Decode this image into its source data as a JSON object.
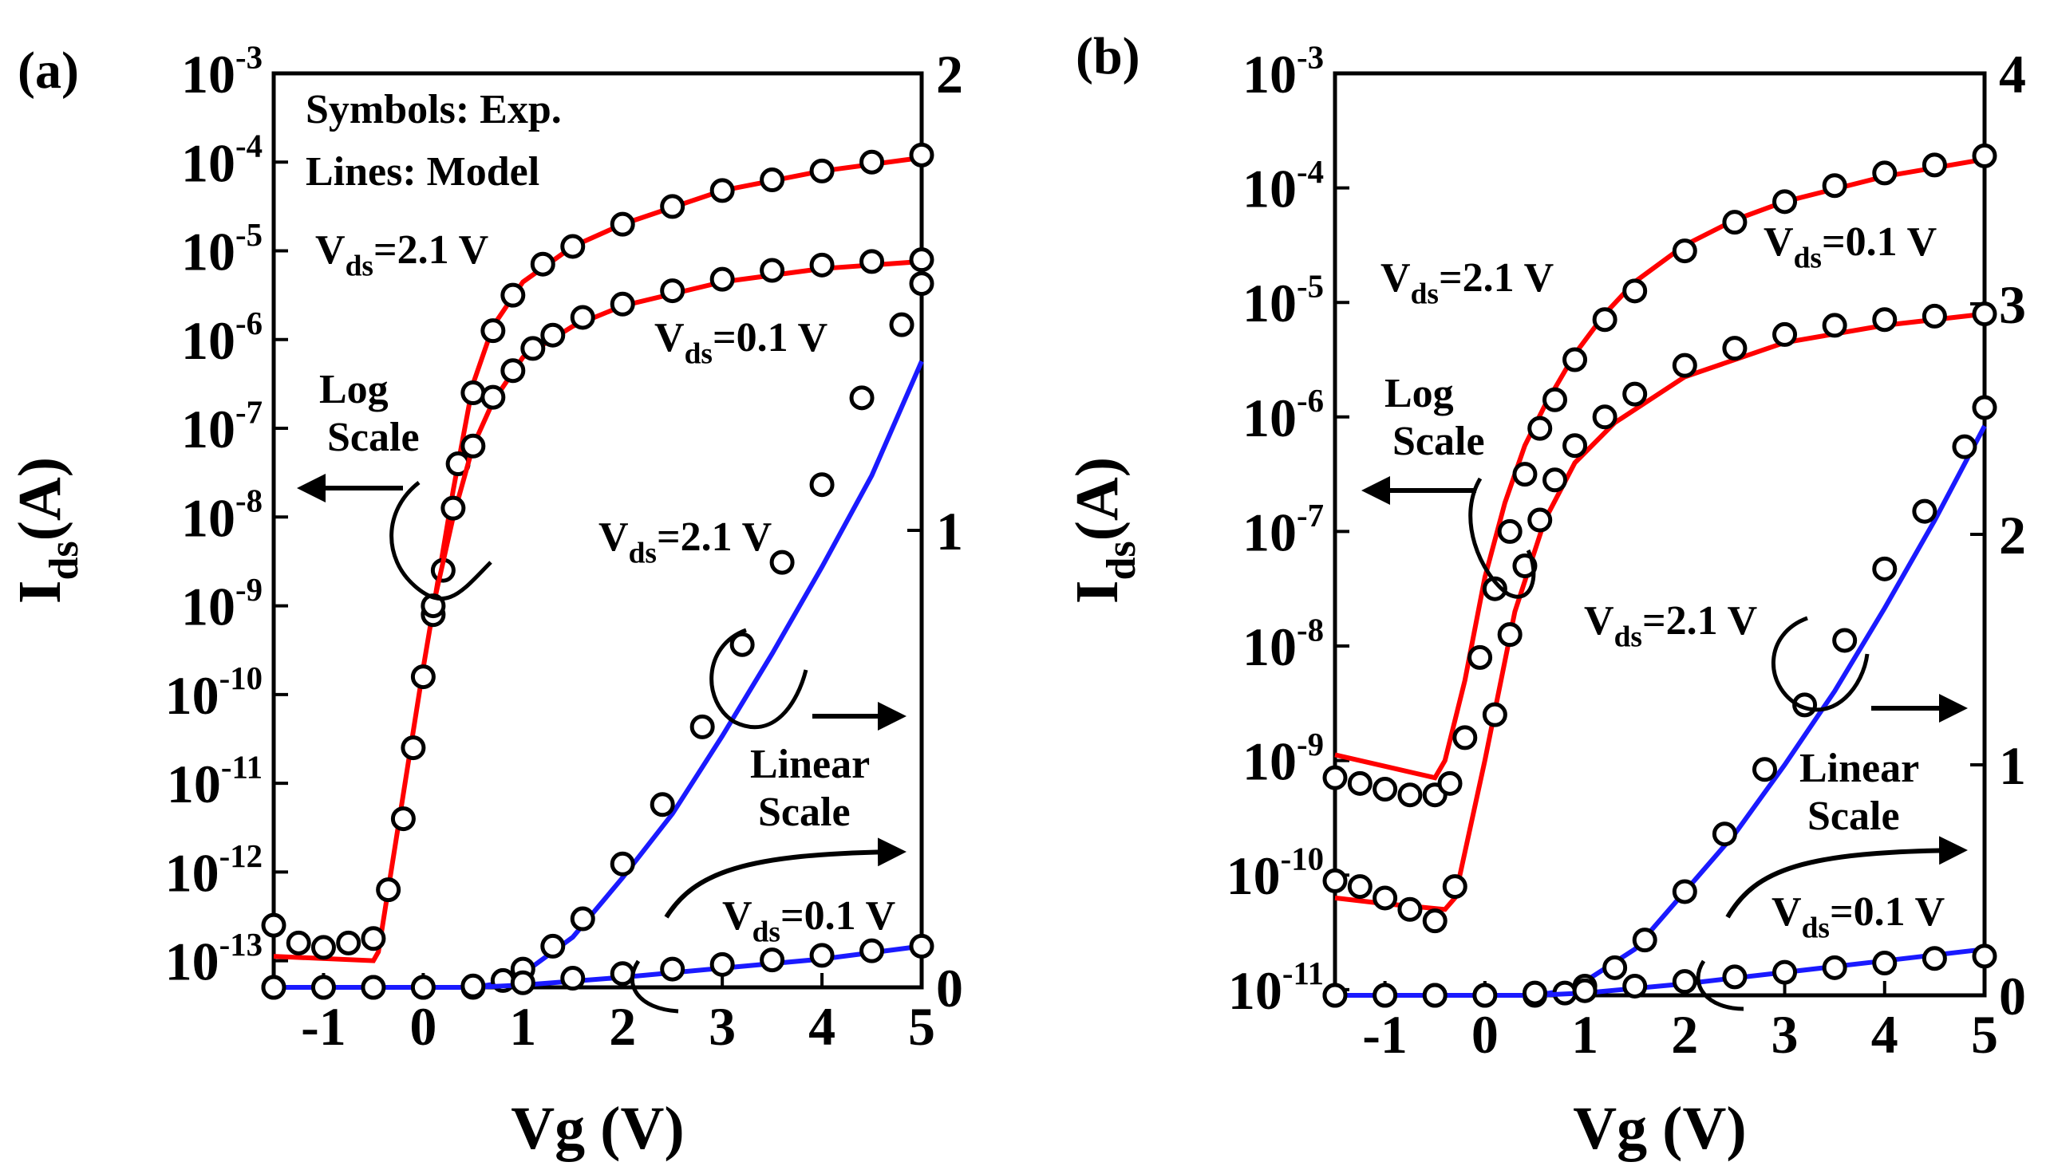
{
  "figure": {
    "panel_labels": [
      "(a)",
      "(b)"
    ]
  },
  "chart_data": [
    {
      "type": "line",
      "panel": "(a)",
      "xlabel": "Vg (V)",
      "ylabel_left": {
        "main": "I",
        "sub": "ds",
        "unit": "(A)"
      },
      "xlim": [
        -1.5,
        5
      ],
      "xticks": [
        -1,
        0,
        1,
        2,
        3,
        4,
        5
      ],
      "ylim_log_exp": [
        -13.3,
        -3
      ],
      "yticks_log_exp": [
        -3,
        -4,
        -5,
        -6,
        -7,
        -8,
        -9,
        -10,
        -11,
        -12,
        -13
      ],
      "ylim_right": [
        0,
        2
      ],
      "yticks_right": [
        0,
        1,
        2
      ],
      "legend": [
        "Symbols: Exp.",
        "Lines: Model"
      ],
      "colors": {
        "log_model": "#ff0000",
        "linear_model": "#1a1aff",
        "exp": "#000000"
      },
      "series": [
        {
          "name": "Vds=2.1 V (log)",
          "scale": "log",
          "x": [
            -1.5,
            -1.25,
            -1.0,
            -0.75,
            -0.5,
            -0.35,
            -0.2,
            -0.1,
            0,
            0.1,
            0.2,
            0.35,
            0.5,
            0.7,
            0.9,
            1.2,
            1.5,
            2,
            2.5,
            3,
            3.5,
            4,
            4.5,
            5
          ],
          "exp": [
            -12.6,
            -12.8,
            -12.85,
            -12.8,
            -12.75,
            -12.2,
            -11.4,
            -10.6,
            -9.8,
            -9.1,
            -8.6,
            -7.4,
            -6.6,
            -5.9,
            -5.5,
            -5.15,
            -4.95,
            -4.7,
            -4.5,
            -4.32,
            -4.2,
            -4.1,
            -4.0,
            -3.92
          ],
          "model_x": [
            -1.5,
            -0.5,
            -0.45,
            0,
            0.3,
            0.5,
            0.7,
            1.0,
            1.5,
            2,
            3,
            4,
            5
          ],
          "model": [
            -12.95,
            -13.0,
            -12.9,
            -9.7,
            -7.7,
            -6.5,
            -5.85,
            -5.35,
            -4.95,
            -4.7,
            -4.32,
            -4.1,
            -3.95
          ]
        },
        {
          "name": "Vds=0.1 V (log)",
          "scale": "log",
          "x": [
            0.1,
            0.3,
            0.5,
            0.7,
            0.9,
            1.1,
            1.3,
            1.6,
            2,
            2.5,
            3,
            3.5,
            4,
            4.5,
            5
          ],
          "exp": [
            -9.0,
            -7.9,
            -7.2,
            -6.65,
            -6.35,
            -6.1,
            -5.95,
            -5.75,
            -5.6,
            -5.45,
            -5.32,
            -5.22,
            -5.16,
            -5.12,
            -5.1
          ],
          "model_x": [
            0.1,
            0.3,
            0.5,
            0.7,
            1.0,
            1.5,
            2,
            3,
            4,
            5
          ],
          "model": [
            -9.0,
            -8.0,
            -7.2,
            -6.7,
            -6.2,
            -5.85,
            -5.62,
            -5.35,
            -5.2,
            -5.12
          ]
        },
        {
          "name": "Vds=2.1 V (linear)",
          "scale": "linear",
          "x": [
            -1.5,
            -1,
            -0.5,
            0,
            0.5,
            0.8,
            1.0,
            1.3,
            1.6,
            2,
            2.4,
            2.8,
            3.2,
            3.6,
            4,
            4.4,
            4.8,
            5
          ],
          "exp": [
            0,
            0,
            0,
            0,
            0,
            0.015,
            0.04,
            0.09,
            0.15,
            0.27,
            0.4,
            0.57,
            0.75,
            0.93,
            1.1,
            1.29,
            1.45,
            1.54
          ],
          "model_x": [
            -1.5,
            0.5,
            0.8,
            1.0,
            1.5,
            2,
            2.5,
            3,
            3.5,
            4,
            4.5,
            5
          ],
          "model": [
            0,
            0,
            0.01,
            0.03,
            0.11,
            0.24,
            0.38,
            0.55,
            0.73,
            0.92,
            1.12,
            1.37
          ]
        },
        {
          "name": "Vds=0.1 V (linear)",
          "scale": "linear",
          "x": [
            -1.5,
            -1,
            -0.5,
            0,
            0.5,
            1,
            1.5,
            2,
            2.5,
            3,
            3.5,
            4,
            4.5,
            5
          ],
          "exp": [
            0,
            0,
            0,
            0,
            0.003,
            0.01,
            0.02,
            0.03,
            0.04,
            0.05,
            0.06,
            0.07,
            0.08,
            0.09
          ],
          "model_x": [
            -1.5,
            0.5,
            1,
            2,
            3,
            4,
            5
          ],
          "model": [
            0,
            0,
            0.005,
            0.022,
            0.042,
            0.062,
            0.09
          ]
        }
      ],
      "annotations": {
        "vds_high_log": {
          "main": "V",
          "sub": "ds",
          "tail": "=2.1 V"
        },
        "vds_low_log": {
          "main": "V",
          "sub": "ds",
          "tail": "=0.1 V"
        },
        "vds_high_lin": {
          "main": "V",
          "sub": "ds",
          "tail": "=2.1 V"
        },
        "vds_low_lin": {
          "main": "V",
          "sub": "ds",
          "tail": "=0.1 V"
        },
        "log_scale": [
          "Log",
          "Scale"
        ],
        "linear_scale": [
          "Linear",
          "Scale"
        ]
      }
    },
    {
      "type": "line",
      "panel": "(b)",
      "xlabel": "Vg (V)",
      "ylabel_left": {
        "main": "I",
        "sub": "ds",
        "unit": "(A)"
      },
      "xlim": [
        -1.5,
        5
      ],
      "xticks": [
        -1,
        0,
        1,
        2,
        3,
        4,
        5
      ],
      "ylim_log_exp": [
        -11.05,
        -3
      ],
      "yticks_log_exp": [
        -3,
        -4,
        -5,
        -6,
        -7,
        -8,
        -9,
        -10,
        -11
      ],
      "ylim_right": [
        0,
        4
      ],
      "yticks_right": [
        0,
        1,
        2,
        3,
        4
      ],
      "colors": {
        "log_model": "#ff0000",
        "linear_model": "#1a1aff",
        "exp": "#000000"
      },
      "series": [
        {
          "name": "Vds=2.1 V (log)",
          "scale": "log",
          "x": [
            -1.5,
            -1.25,
            -1.0,
            -0.75,
            -0.5,
            -0.35,
            -0.2,
            -0.05,
            0.1,
            0.25,
            0.4,
            0.55,
            0.7,
            0.9,
            1.2,
            1.5,
            2,
            2.5,
            3,
            3.5,
            4,
            4.5,
            5
          ],
          "exp": [
            -9.15,
            -9.2,
            -9.25,
            -9.3,
            -9.3,
            -9.2,
            -8.8,
            -8.1,
            -7.5,
            -7.0,
            -6.5,
            -6.1,
            -5.85,
            -5.5,
            -5.15,
            -4.9,
            -4.55,
            -4.3,
            -4.12,
            -3.98,
            -3.87,
            -3.8,
            -3.72
          ],
          "model_x": [
            -1.5,
            -1.0,
            -0.5,
            -0.4,
            -0.2,
            0,
            0.2,
            0.4,
            0.6,
            0.9,
            1.2,
            1.5,
            2,
            2.5,
            3,
            4,
            5
          ],
          "model": [
            -8.95,
            -9.05,
            -9.15,
            -9.0,
            -8.3,
            -7.4,
            -6.75,
            -6.25,
            -5.9,
            -5.45,
            -5.1,
            -4.82,
            -4.5,
            -4.28,
            -4.12,
            -3.9,
            -3.75
          ]
        },
        {
          "name": "Vds=0.1 V (log)",
          "scale": "log",
          "x": [
            -1.5,
            -1.25,
            -1.0,
            -0.75,
            -0.5,
            -0.3,
            0.1,
            0.25,
            0.4,
            0.55,
            0.7,
            0.9,
            1.2,
            1.5,
            2,
            2.5,
            3,
            3.5,
            4,
            4.5,
            5
          ],
          "exp": [
            -10.05,
            -10.1,
            -10.2,
            -10.3,
            -10.4,
            -10.1,
            -8.6,
            -7.9,
            -7.3,
            -6.9,
            -6.55,
            -6.25,
            -6.0,
            -5.8,
            -5.55,
            -5.4,
            -5.28,
            -5.2,
            -5.15,
            -5.12,
            -5.1
          ],
          "model_x": [
            -1.5,
            -1.0,
            -0.4,
            -0.3,
            0,
            0.3,
            0.6,
            0.9,
            1.3,
            2,
            3,
            4,
            5
          ],
          "model": [
            -10.2,
            -10.25,
            -10.3,
            -10.2,
            -9.0,
            -7.7,
            -6.9,
            -6.4,
            -6.05,
            -5.65,
            -5.35,
            -5.2,
            -5.1
          ]
        },
        {
          "name": "Vds=2.1 V (linear)",
          "scale": "linear",
          "x": [
            -1.5,
            -1,
            -0.5,
            0,
            0.5,
            0.8,
            1.0,
            1.3,
            1.6,
            2,
            2.4,
            2.8,
            3.2,
            3.6,
            4,
            4.4,
            4.8,
            5
          ],
          "exp": [
            0,
            0,
            0,
            0,
            0,
            0.01,
            0.04,
            0.12,
            0.24,
            0.45,
            0.7,
            0.98,
            1.26,
            1.54,
            1.85,
            2.1,
            2.38,
            2.55
          ],
          "model_x": [
            -1.5,
            0.5,
            0.8,
            1.0,
            1.5,
            2,
            2.5,
            3,
            3.5,
            4,
            4.5,
            5
          ],
          "model": [
            0,
            0,
            0.02,
            0.06,
            0.2,
            0.45,
            0.7,
            1.0,
            1.32,
            1.68,
            2.06,
            2.47
          ]
        },
        {
          "name": "Vds=0.1 V (linear)",
          "scale": "linear",
          "x": [
            -1.5,
            -1,
            -0.5,
            0,
            0.5,
            1,
            1.5,
            2,
            2.5,
            3,
            3.5,
            4,
            4.5,
            5
          ],
          "exp": [
            0,
            0,
            0,
            0,
            0.01,
            0.02,
            0.04,
            0.06,
            0.08,
            0.1,
            0.12,
            0.14,
            0.16,
            0.17
          ],
          "model_x": [
            -1.5,
            0.5,
            1,
            2,
            3,
            4,
            5
          ],
          "model": [
            0,
            0,
            0.01,
            0.05,
            0.1,
            0.15,
            0.2
          ]
        }
      ],
      "annotations": {
        "vds_high_log": {
          "main": "V",
          "sub": "ds",
          "tail": "=2.1 V"
        },
        "vds_low_log": {
          "main": "V",
          "sub": "ds",
          "tail": "=0.1 V"
        },
        "vds_high_lin": {
          "main": "V",
          "sub": "ds",
          "tail": "=2.1 V"
        },
        "vds_low_lin": {
          "main": "V",
          "sub": "ds",
          "tail": "=0.1 V"
        },
        "log_scale": [
          "Log",
          "Scale"
        ],
        "linear_scale": [
          "Linear",
          "Scale"
        ]
      }
    }
  ]
}
